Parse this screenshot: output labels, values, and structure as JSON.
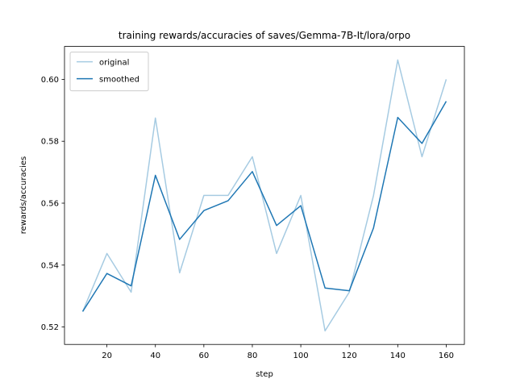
{
  "chart_data": {
    "type": "line",
    "title": "training rewards/accuracies of saves/Gemma-7B-It/lora/orpo",
    "x_label": "step",
    "y_label": "rewards/accuracies",
    "x": [
      10,
      20,
      30,
      40,
      50,
      60,
      70,
      80,
      90,
      100,
      110,
      120,
      130,
      140,
      150,
      160
    ],
    "series": [
      {
        "name": "original",
        "color": "#a6cbe2",
        "values": [
          0.525,
          0.54375,
          0.53125,
          0.5875,
          0.5375,
          0.5625,
          0.5625,
          0.575,
          0.54375,
          0.5625,
          0.51875,
          0.53125,
          0.5625,
          0.60625,
          0.575,
          0.6
        ]
      },
      {
        "name": "smoothed",
        "color": "#1f77b4",
        "values": [
          0.525,
          0.5373,
          0.5333,
          0.569,
          0.5483,
          0.5576,
          0.5608,
          0.5702,
          0.5528,
          0.5592,
          0.5326,
          0.5317,
          0.552,
          0.5877,
          0.5793,
          0.5929
        ]
      }
    ],
    "xlim": [
      2.5,
      167.5
    ],
    "xticks": [
      20,
      40,
      60,
      80,
      100,
      120,
      140,
      160
    ],
    "ylim": [
      0.514375,
      0.610625
    ],
    "yticks": [
      0.52,
      0.54,
      0.56,
      0.58,
      {
        "value": 0.6,
        "label": "0.60"
      }
    ],
    "legend": "upper left"
  }
}
